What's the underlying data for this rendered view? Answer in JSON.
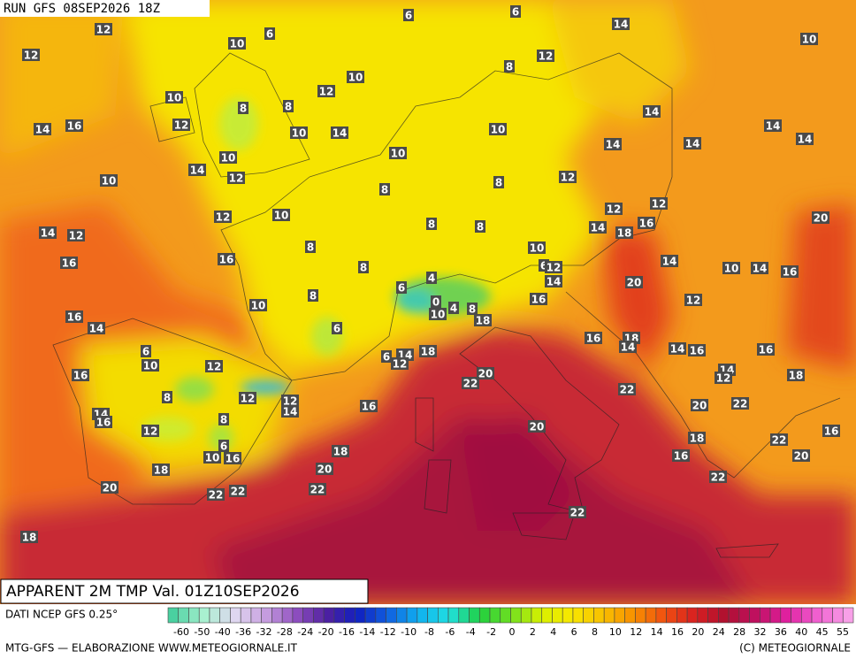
{
  "header": "RUN GFS 08SEP2026 18Z",
  "title": "APPARENT 2M TMP Val. 01Z10SEP2026",
  "source": "DATI NCEP GFS 0.25°",
  "colorbar_labels": [
    -60,
    -50,
    -40,
    -36,
    -32,
    -28,
    -24,
    -20,
    -16,
    -14,
    -12,
    -10,
    -8,
    -6,
    -4,
    -2,
    0,
    2,
    4,
    6,
    8,
    10,
    12,
    14,
    16,
    20,
    24,
    28,
    32,
    36,
    40,
    45,
    55
  ],
  "footer_left": "MTG-GFS — ELABORAZIONE WWW.METEOGIORNALE.IT",
  "footer_right": "(C) METEOGIORNALE",
  "map_labels": [
    12,
    10,
    6,
    6,
    6,
    14,
    10,
    12,
    8,
    12,
    10,
    12,
    10,
    8,
    8,
    14,
    14,
    16,
    12,
    10,
    14,
    10,
    14,
    14,
    14,
    14,
    10,
    10,
    14,
    12,
    10,
    8,
    8,
    12,
    12,
    12,
    10,
    12,
    20,
    8,
    8,
    14,
    12,
    14,
    18,
    16,
    8,
    10,
    16,
    16,
    8,
    14,
    10,
    14,
    16,
    6,
    12,
    14,
    20,
    4,
    6,
    8,
    0,
    10,
    16,
    12,
    4,
    10,
    8,
    18,
    16,
    14,
    6,
    16,
    18,
    6,
    10,
    14,
    6,
    12,
    18,
    14,
    14,
    16,
    16,
    12,
    14,
    12,
    16,
    18,
    20,
    22,
    22,
    8,
    12,
    12,
    14,
    16,
    20,
    22,
    14,
    16,
    8,
    12,
    20,
    16,
    22,
    18,
    18,
    6,
    10,
    16,
    16,
    20,
    18,
    20,
    22,
    20,
    22,
    22,
    22,
    22,
    18
  ]
}
